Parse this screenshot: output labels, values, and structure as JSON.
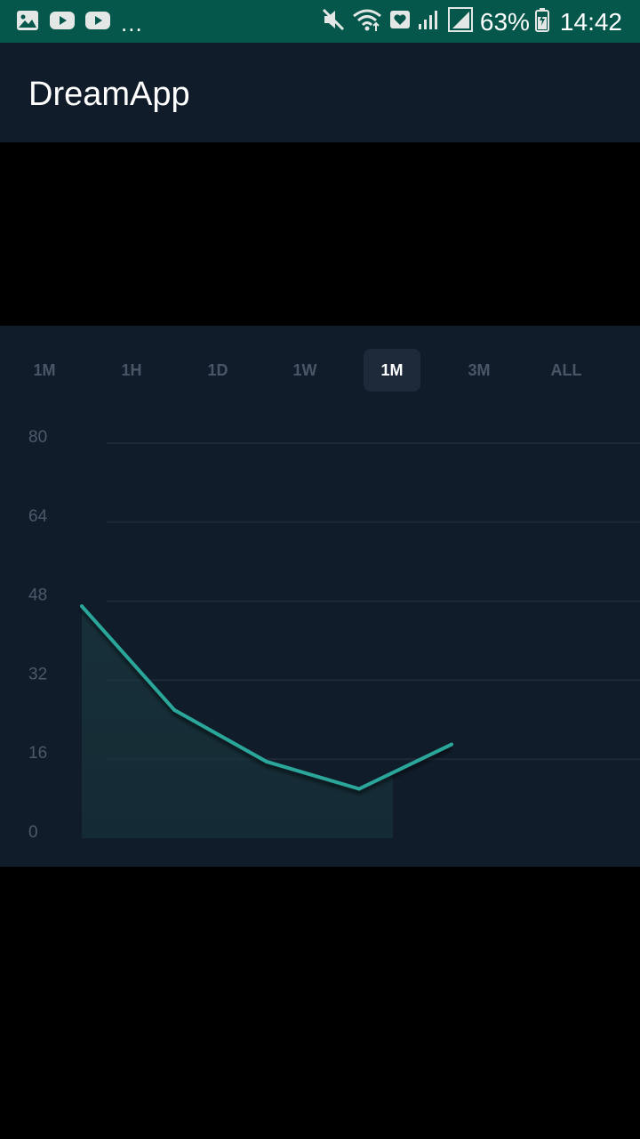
{
  "status_bar": {
    "left_icons": [
      "image-icon",
      "youtube-icon",
      "youtube-icon"
    ],
    "overflow": "...",
    "right_icons": [
      "mute-icon",
      "wifi-icon",
      "heart-icon",
      "signal-icon",
      "signal-icon"
    ],
    "battery_percent": "63%",
    "time": "14:42"
  },
  "app_bar": {
    "title": "DreamApp"
  },
  "range_tabs": [
    {
      "label": "1M",
      "active": false
    },
    {
      "label": "1H",
      "active": false
    },
    {
      "label": "1D",
      "active": false
    },
    {
      "label": "1W",
      "active": false
    },
    {
      "label": "1M",
      "active": true
    },
    {
      "label": "3M",
      "active": false
    },
    {
      "label": "ALL",
      "active": false
    }
  ],
  "colors": {
    "status_bar": "#04574A",
    "panel_background": "#111C2A",
    "line": "#2BA79A",
    "grid": "#1E2938",
    "axis_label": "#4D596A",
    "active_tab_background": "#1E2939"
  },
  "chart_data": {
    "type": "area",
    "x": [
      1,
      2,
      3,
      4,
      5
    ],
    "series": [
      {
        "values": [
          47,
          26,
          15.5,
          10,
          19
        ]
      }
    ],
    "ylim": [
      0,
      80
    ],
    "yticks": [
      "0",
      "16",
      "32",
      "48",
      "64",
      "80"
    ],
    "grid": true,
    "legend": "none"
  }
}
